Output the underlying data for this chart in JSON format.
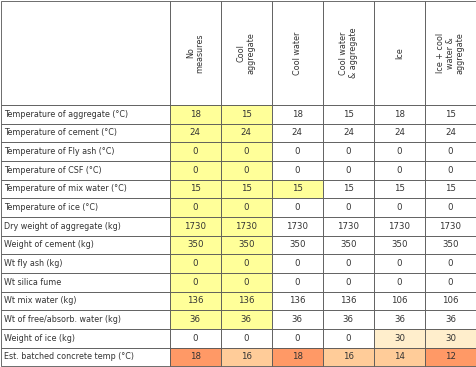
{
  "col_headers": [
    "No\nmeasures",
    "Cool\naggregate",
    "Cool water",
    "Cool water\n& aggregate",
    "Ice",
    "Ice + cool\nwater &\naggregate"
  ],
  "row_labels": [
    "Temperature of aggregate (°C)",
    "Temperature of cement (°C)",
    "Temperature of Fly ash (°C)",
    "Temperature of CSF (°C)",
    "Temperature of mix water (°C)",
    "Temperature of ice (°C)",
    "Dry weight of aggregate (kg)\nWeight of cement (kg)",
    "Wt fly ash (kg)",
    "Wt silica fume",
    "Wt mix water (kg)",
    "Wt of free/absorb. water (kg)",
    "Weight of ice (kg)",
    "Est. batched concrete temp (°C)"
  ],
  "row_labels_display": [
    "Temperature of aggregate (°C)",
    "Temperature of cement (°C)",
    "Temperature of Fly ash (°C)",
    "Temperature of CSF (°C)",
    "Temperature of mix water (°C)",
    "Temperature of ice (°C)",
    "Dry weight of aggregate (kg)",
    "Weight of cement (kg)",
    "Wt fly ash (kg)",
    "Wt silica fume",
    "Wt mix water (kg)",
    "Wt of free/absorb. water (kg)",
    "Weight of ice (kg)",
    "Est. batched concrete temp (°C)"
  ],
  "table_data": [
    [
      18,
      15,
      18,
      15,
      18,
      15
    ],
    [
      24,
      24,
      24,
      24,
      24,
      24
    ],
    [
      0,
      0,
      0,
      0,
      0,
      0
    ],
    [
      0,
      0,
      0,
      0,
      0,
      0
    ],
    [
      15,
      15,
      15,
      15,
      15,
      15
    ],
    [
      0,
      0,
      0,
      0,
      0,
      0
    ],
    [
      1730,
      1730,
      1730,
      1730,
      1730,
      1730
    ],
    [
      350,
      350,
      350,
      350,
      350,
      350
    ],
    [
      0,
      0,
      0,
      0,
      0,
      0
    ],
    [
      0,
      0,
      0,
      0,
      0,
      0
    ],
    [
      136,
      136,
      136,
      136,
      106,
      106
    ],
    [
      36,
      36,
      36,
      36,
      36,
      36
    ],
    [
      0,
      0,
      0,
      0,
      30,
      30
    ],
    [
      18,
      16,
      18,
      16,
      14,
      12
    ]
  ],
  "cell_colors": [
    [
      "#FFFF99",
      "#FFFF99",
      "#FFFFFF",
      "#FFFFFF",
      "#FFFFFF",
      "#FFFFFF"
    ],
    [
      "#FFFF99",
      "#FFFF99",
      "#FFFFFF",
      "#FFFFFF",
      "#FFFFFF",
      "#FFFFFF"
    ],
    [
      "#FFFF99",
      "#FFFF99",
      "#FFFFFF",
      "#FFFFFF",
      "#FFFFFF",
      "#FFFFFF"
    ],
    [
      "#FFFF99",
      "#FFFF99",
      "#FFFFFF",
      "#FFFFFF",
      "#FFFFFF",
      "#FFFFFF"
    ],
    [
      "#FFFF99",
      "#FFFF99",
      "#FFFF99",
      "#FFFFFF",
      "#FFFFFF",
      "#FFFFFF"
    ],
    [
      "#FFFF99",
      "#FFFF99",
      "#FFFFFF",
      "#FFFFFF",
      "#FFFFFF",
      "#FFFFFF"
    ],
    [
      "#FFFF99",
      "#FFFF99",
      "#FFFFFF",
      "#FFFFFF",
      "#FFFFFF",
      "#FFFFFF"
    ],
    [
      "#FFFF99",
      "#FFFF99",
      "#FFFFFF",
      "#FFFFFF",
      "#FFFFFF",
      "#FFFFFF"
    ],
    [
      "#FFFF99",
      "#FFFF99",
      "#FFFFFF",
      "#FFFFFF",
      "#FFFFFF",
      "#FFFFFF"
    ],
    [
      "#FFFF99",
      "#FFFF99",
      "#FFFFFF",
      "#FFFFFF",
      "#FFFFFF",
      "#FFFFFF"
    ],
    [
      "#FFFF99",
      "#FFFF99",
      "#FFFFFF",
      "#FFFFFF",
      "#FFFFFF",
      "#FFFFFF"
    ],
    [
      "#FFFF99",
      "#FFFF99",
      "#FFFFFF",
      "#FFFFFF",
      "#FFFFFF",
      "#FFFFFF"
    ],
    [
      "#FFFFFF",
      "#FFFFFF",
      "#FFFFFF",
      "#FFFFFF",
      "#FFEECC",
      "#FFEECC"
    ],
    [
      "#FF9966",
      "#FFCC99",
      "#FF9966",
      "#FFCC99",
      "#FFCC99",
      "#FF9966"
    ]
  ],
  "double_rows": [
    6,
    7
  ],
  "border_color": "#555555",
  "text_color": "#333333",
  "header_bg": "#FFFFFF",
  "yellow": "#FFFF99",
  "orange_light": "#FFCC99",
  "orange_dark": "#FF9966"
}
